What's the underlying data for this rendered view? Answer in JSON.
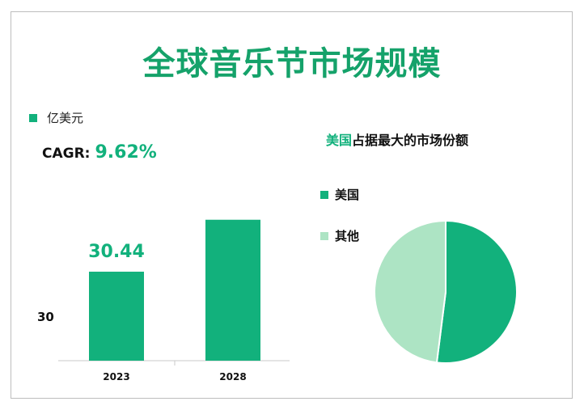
{
  "title": "全球音乐节市场规模",
  "colors": {
    "primary": "#12b17c",
    "secondary": "#ade4c4"
  },
  "bar_legend": "亿美元",
  "cagr": {
    "label": "CAGR:",
    "value": "9.62%"
  },
  "y_tick": "30",
  "pie_title": {
    "highlight": "美国",
    "rest": "占据最大的市场份额"
  },
  "pie_legend": [
    "美国",
    "其他"
  ],
  "chart_data": [
    {
      "type": "bar",
      "categories": [
        "2023",
        "2028"
      ],
      "values": [
        30.44,
        48.2
      ],
      "value_labels": [
        "30.44",
        ""
      ],
      "series": [
        {
          "name": "亿美元",
          "values": [
            30.44,
            48.2
          ]
        }
      ],
      "ylim": [
        0,
        52
      ],
      "color": "#12b17c"
    },
    {
      "type": "pie",
      "title": "美国占据最大的市场份额",
      "labels": [
        "美国",
        "其他"
      ],
      "values": [
        52,
        48
      ],
      "colors": [
        "#12b17c",
        "#ade4c4"
      ]
    }
  ]
}
